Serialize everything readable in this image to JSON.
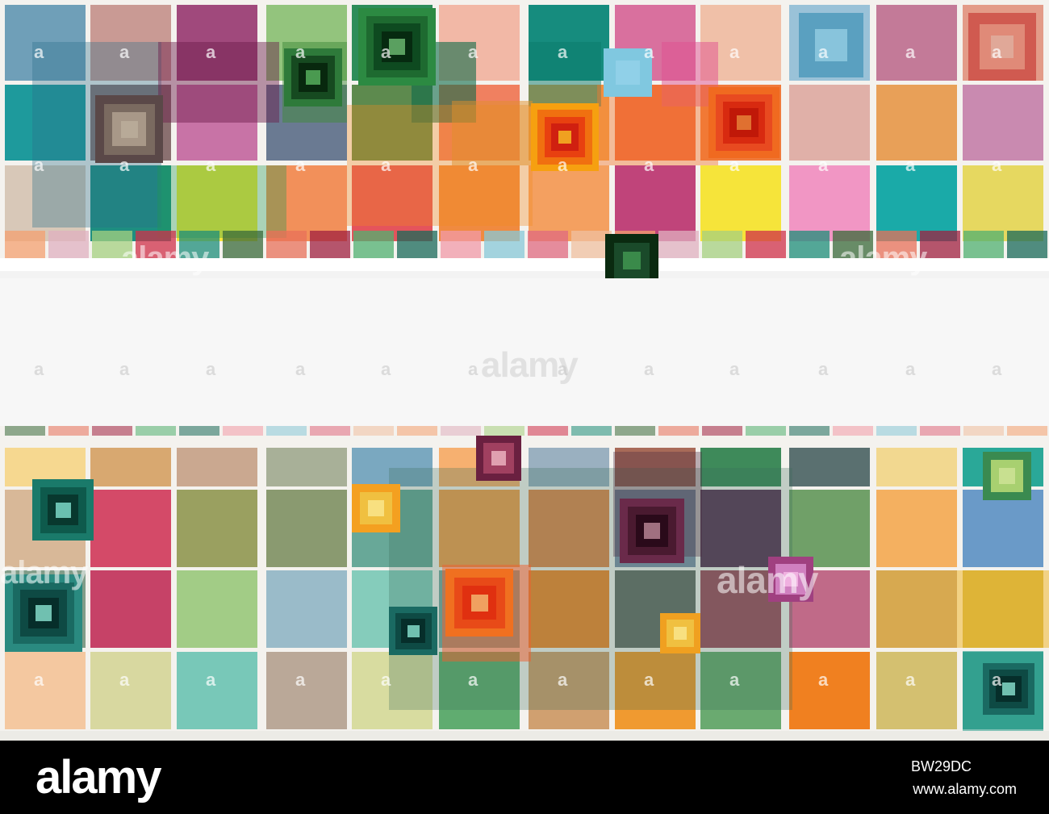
{
  "artwork": {
    "description_colors": {
      "teal": "#1a9a92",
      "orange": "#f28a3a",
      "magenta": "#c8477f",
      "yellow": "#f6e33a",
      "green": "#5aa860",
      "pink": "#ef8fb8"
    }
  },
  "watermarks": {
    "small_text": "alamy",
    "center_text": "alamy",
    "a_mark": "a"
  },
  "footer": {
    "logo": "alamy",
    "image_id": "BW29DC",
    "url": "www.alamy.com"
  }
}
